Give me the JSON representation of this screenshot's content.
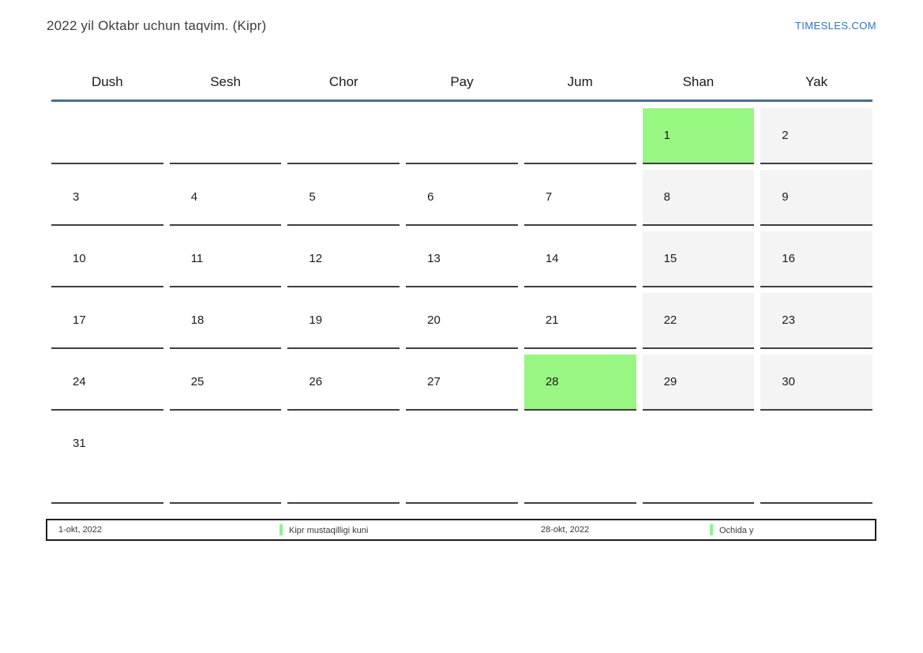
{
  "page": {
    "title": "2022 yil Oktabr uchun taqvim. (Kipr)",
    "site_link": "TIMESLES.COM"
  },
  "calendar": {
    "weekdays": [
      "Dush",
      "Sesh",
      "Chor",
      "Pay",
      "Jum",
      "Shan",
      "Yak"
    ],
    "weeks": [
      [
        {
          "d": "",
          "t": "empty"
        },
        {
          "d": "",
          "t": "empty"
        },
        {
          "d": "",
          "t": "empty"
        },
        {
          "d": "",
          "t": "empty"
        },
        {
          "d": "",
          "t": "empty"
        },
        {
          "d": "1",
          "t": "holiday"
        },
        {
          "d": "2",
          "t": "weekend"
        }
      ],
      [
        {
          "d": "3",
          "t": "normal"
        },
        {
          "d": "4",
          "t": "normal"
        },
        {
          "d": "5",
          "t": "normal"
        },
        {
          "d": "6",
          "t": "normal"
        },
        {
          "d": "7",
          "t": "normal"
        },
        {
          "d": "8",
          "t": "weekend"
        },
        {
          "d": "9",
          "t": "weekend"
        }
      ],
      [
        {
          "d": "10",
          "t": "normal"
        },
        {
          "d": "11",
          "t": "normal"
        },
        {
          "d": "12",
          "t": "normal"
        },
        {
          "d": "13",
          "t": "normal"
        },
        {
          "d": "14",
          "t": "normal"
        },
        {
          "d": "15",
          "t": "weekend"
        },
        {
          "d": "16",
          "t": "weekend"
        }
      ],
      [
        {
          "d": "17",
          "t": "normal"
        },
        {
          "d": "18",
          "t": "normal"
        },
        {
          "d": "19",
          "t": "normal"
        },
        {
          "d": "20",
          "t": "normal"
        },
        {
          "d": "21",
          "t": "normal"
        },
        {
          "d": "22",
          "t": "weekend"
        },
        {
          "d": "23",
          "t": "weekend"
        }
      ],
      [
        {
          "d": "24",
          "t": "normal"
        },
        {
          "d": "25",
          "t": "normal"
        },
        {
          "d": "26",
          "t": "normal"
        },
        {
          "d": "27",
          "t": "normal"
        },
        {
          "d": "28",
          "t": "holiday"
        },
        {
          "d": "29",
          "t": "weekend"
        },
        {
          "d": "30",
          "t": "weekend"
        }
      ],
      [
        {
          "d": "31",
          "t": "normal"
        },
        {
          "d": "",
          "t": "empty"
        },
        {
          "d": "",
          "t": "empty"
        },
        {
          "d": "",
          "t": "empty"
        },
        {
          "d": "",
          "t": "empty"
        },
        {
          "d": "",
          "t": "empty"
        },
        {
          "d": "",
          "t": "empty"
        }
      ]
    ]
  },
  "legend": {
    "items": [
      {
        "date": "1-okt, 2022",
        "name": "Kipr mustaqilligi kuni"
      },
      {
        "date": "28-okt, 2022",
        "name": "Ochida y"
      }
    ]
  },
  "colors": {
    "accent_line": "#4a6e96",
    "link_blue": "#2d74c4",
    "holiday_green": "#98f782",
    "weekend_gray": "#f4f4f4",
    "cell_border": "#3f3f3f",
    "legend_marker_green": "#8ef58e"
  }
}
